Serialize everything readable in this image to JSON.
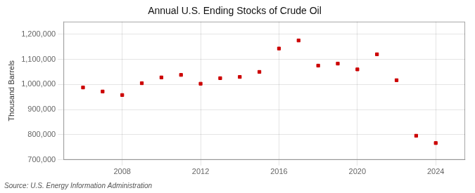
{
  "chart_data": {
    "type": "scatter",
    "title": "Annual U.S. Ending Stocks of Crude Oil",
    "ylabel": "Thousand Barrels",
    "source": "Source: U.S. Energy Information Administration",
    "x": [
      2006,
      2007,
      2008,
      2009,
      2010,
      2011,
      2012,
      2013,
      2014,
      2015,
      2016,
      2017,
      2018,
      2019,
      2020,
      2021,
      2022,
      2023,
      2024
    ],
    "values": [
      988000,
      972000,
      958000,
      1005000,
      1028000,
      1038000,
      1003000,
      1025000,
      1030000,
      1050000,
      1143000,
      1175000,
      1075000,
      1083000,
      1060000,
      1120000,
      1017000,
      796000,
      767000
    ],
    "color": "#cc0000",
    "marker": "square",
    "xlim": [
      2005.0,
      2025.5
    ],
    "xticks": [
      2008,
      2012,
      2016,
      2020,
      2024
    ],
    "ylim": [
      700000,
      1250000
    ],
    "yticks": [
      {
        "value": 700000,
        "label": "700,000"
      },
      {
        "value": 800000,
        "label": "800,000"
      },
      {
        "value": 900000,
        "label": "900,000"
      },
      {
        "value": 1000000,
        "label": "1,000,000"
      },
      {
        "value": 1100000,
        "label": "1,100,000"
      },
      {
        "value": 1200000,
        "label": "1,200,000"
      }
    ],
    "grid": true
  }
}
